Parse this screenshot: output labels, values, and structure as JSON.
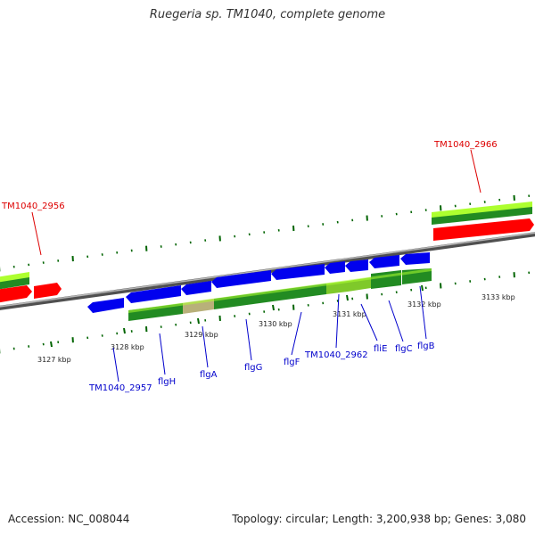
{
  "title": "Ruegeria sp. TM1040, complete genome",
  "accession": "Accession: NC_008044",
  "summary": "Topology: circular; Length: 3,200,938 bp; Genes: 3,080",
  "colors": {
    "backbone": "#8a8a8a",
    "cds_forward": "#0000ee",
    "gene_green": "#228b22",
    "gene_yellow": "#adff2f",
    "rna_red": "#ff0000",
    "pseudo_tan": "#b8b07a",
    "label_blue": "#0000cc",
    "label_red": "#dd0000",
    "tick": "#006400"
  },
  "ticks": [
    "3127 kbp",
    "3128 kbp",
    "3129 kbp",
    "3130 kbp",
    "3131 kbp",
    "3132 kbp",
    "3133 kbp"
  ],
  "labels": {
    "blue": [
      "TM1040_2957",
      "flgH",
      "flgA",
      "flgG",
      "flgF",
      "TM1040_2962",
      "fliE",
      "flgC",
      "flgB"
    ],
    "red": [
      "TM1040_2956",
      "TM1040_2966"
    ]
  }
}
